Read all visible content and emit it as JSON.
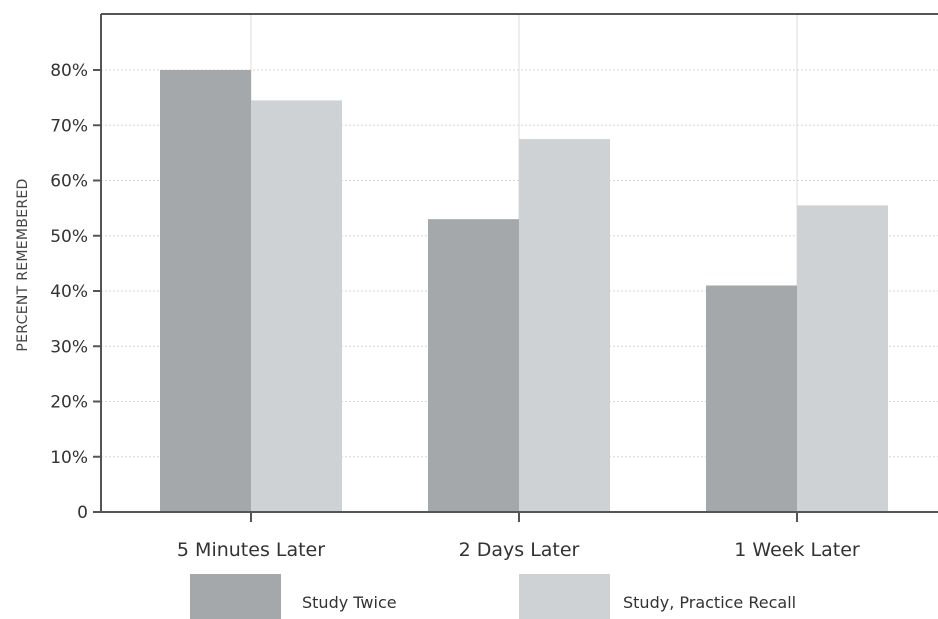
{
  "chart_data": {
    "type": "bar",
    "title": "",
    "xlabel": "",
    "ylabel": "PERCENT REMEMBERED",
    "categories": [
      "5 Minutes Later",
      "2 Days Later",
      "1 Week Later"
    ],
    "series": [
      {
        "name": "Study Twice",
        "values": [
          80,
          53,
          41
        ],
        "color": "#a4a8ab"
      },
      {
        "name": "Study, Practice Recall",
        "values": [
          74.5,
          67.5,
          55.5
        ],
        "color": "#cfd2d4"
      }
    ],
    "ylim": [
      0,
      90
    ],
    "yticks": [
      0,
      10,
      20,
      30,
      40,
      50,
      60,
      70,
      80
    ],
    "ytick_labels": [
      "0",
      "10%",
      "20%",
      "30%",
      "40%",
      "50%",
      "60%",
      "70%",
      "80%"
    ],
    "grid": true,
    "legend_position": "bottom"
  }
}
